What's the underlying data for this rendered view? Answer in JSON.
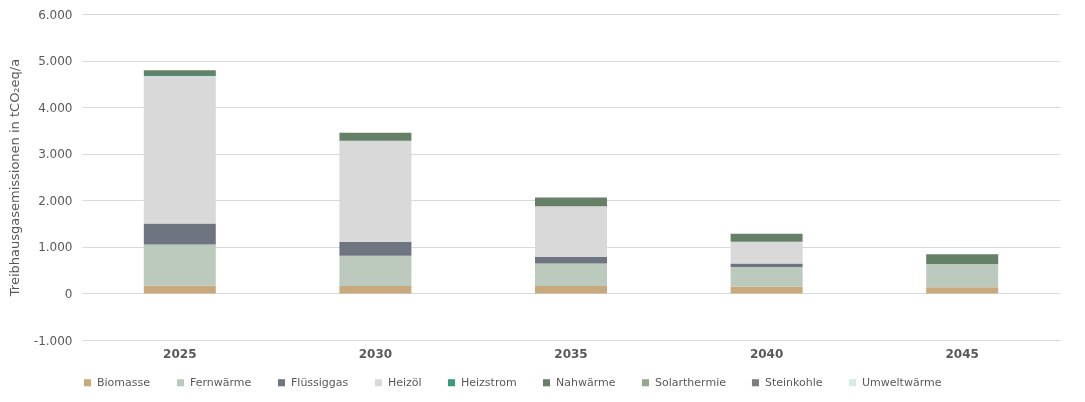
{
  "chart_data": {
    "type": "bar",
    "stacked": true,
    "ylabel": "Treibhausgasemissionen in tCO₂eq/a",
    "categories": [
      "2025",
      "2030",
      "2035",
      "2040",
      "2045"
    ],
    "series": [
      {
        "name": "Biomasse",
        "color": "#c8a97e",
        "values": [
          170,
          160,
          160,
          150,
          130
        ]
      },
      {
        "name": "Fernwärme",
        "color": "#bccabe",
        "values": [
          880,
          650,
          480,
          420,
          500
        ]
      },
      {
        "name": "Flüssiggas",
        "color": "#6f7580",
        "values": [
          450,
          300,
          150,
          70,
          0
        ]
      },
      {
        "name": "Heizöl",
        "color": "#d9d9d9",
        "values": [
          3170,
          2170,
          1080,
          470,
          0
        ]
      },
      {
        "name": "Heizstrom",
        "color": "#3a9a80",
        "values": [
          20,
          0,
          0,
          0,
          0
        ]
      },
      {
        "name": "Nahwärme",
        "color": "#668068",
        "values": [
          100,
          170,
          190,
          170,
          210
        ]
      },
      {
        "name": "Solarthermie",
        "color": "#93a890",
        "values": [
          0,
          0,
          0,
          0,
          0
        ]
      },
      {
        "name": "Steinkohle",
        "color": "#7f7f7f",
        "values": [
          0,
          0,
          0,
          0,
          0
        ]
      },
      {
        "name": "Umweltwärme",
        "color": "#d6ebe4",
        "values": [
          null,
          null,
          null,
          null,
          0
        ]
      }
    ],
    "ylim": [
      -1000,
      6000
    ],
    "yticks": [
      {
        "value": -1000,
        "label": "-1.000"
      },
      {
        "value": 0,
        "label": "0"
      },
      {
        "value": 1000,
        "label": "1.000"
      },
      {
        "value": 2000,
        "label": "2.000"
      },
      {
        "value": 3000,
        "label": "3.000"
      },
      {
        "value": 4000,
        "label": "4.000"
      },
      {
        "value": 5000,
        "label": "5.000"
      },
      {
        "value": 6000,
        "label": "6.000"
      }
    ],
    "grid": "y",
    "legend": "bottom"
  }
}
